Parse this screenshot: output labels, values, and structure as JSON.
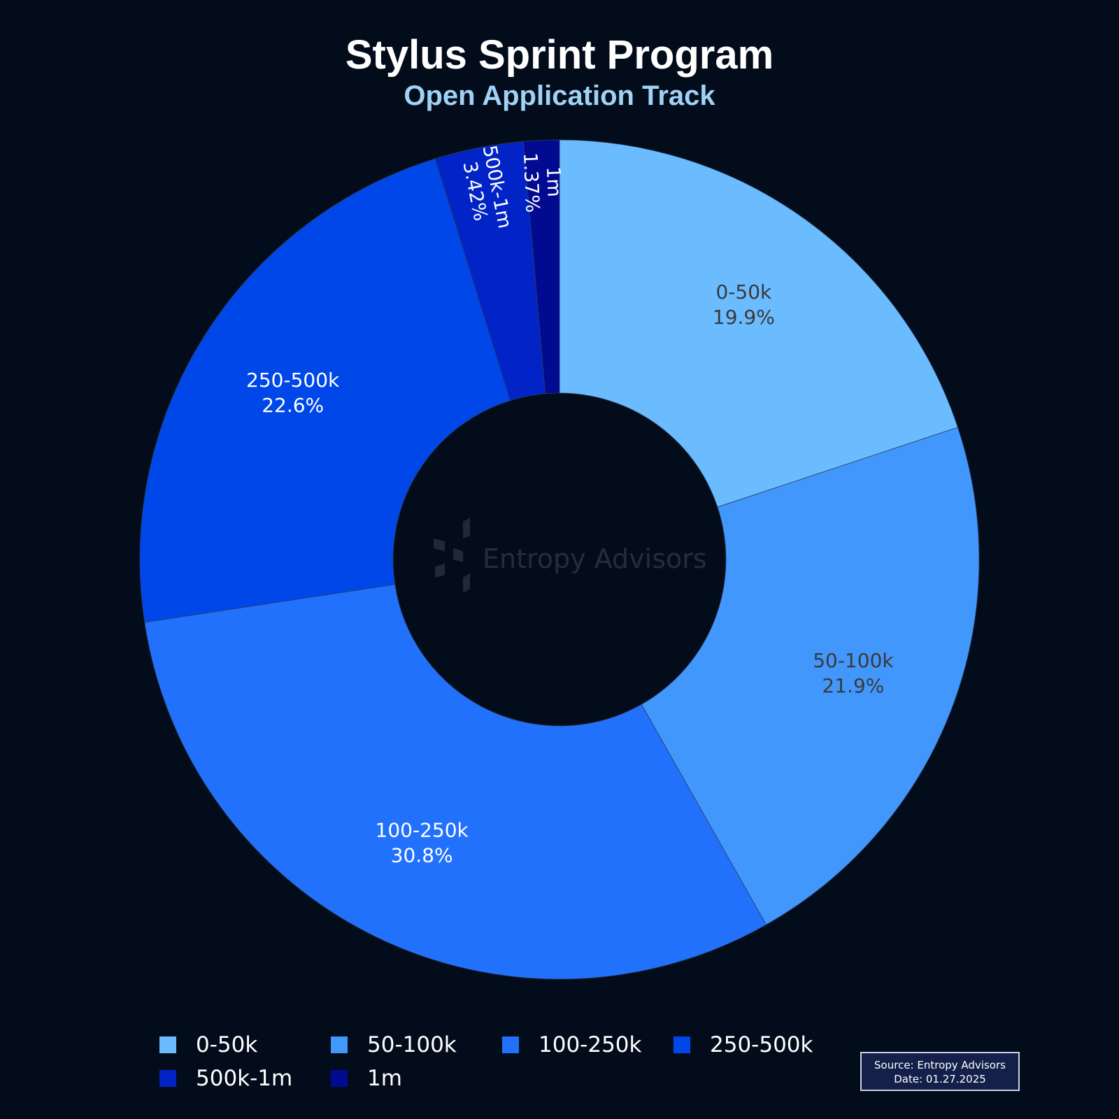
{
  "title": "Stylus Sprint Program",
  "subtitle": "Open Application Track",
  "watermark": "Entropy Advisors",
  "source": {
    "line1": "Source: Entropy Advisors",
    "line2": "Date: 01.27.2025"
  },
  "chart_data": {
    "type": "pie",
    "hole": true,
    "legend_position": "bottom",
    "slices": [
      {
        "label": "0-50k",
        "value": 19.9,
        "display": "19.9%",
        "color": "#6bbcff",
        "text_color": "#3a3a3a"
      },
      {
        "label": "50-100k",
        "value": 21.9,
        "display": "21.9%",
        "color": "#4297fc",
        "text_color": "#3a3a3a"
      },
      {
        "label": "100-250k",
        "value": 30.8,
        "display": "30.8%",
        "color": "#2171fd",
        "text_color": "#ffffff"
      },
      {
        "label": "250-500k",
        "value": 22.6,
        "display": "22.6%",
        "color": "#0047ea",
        "text_color": "#ffffff"
      },
      {
        "label": "500k-1m",
        "value": 3.42,
        "display": "3.42%",
        "color": "#0224c6",
        "text_color": "#ffffff"
      },
      {
        "label": "1m",
        "value": 1.37,
        "display": "1.37%",
        "color": "#020a92",
        "text_color": "#ffffff"
      }
    ]
  }
}
